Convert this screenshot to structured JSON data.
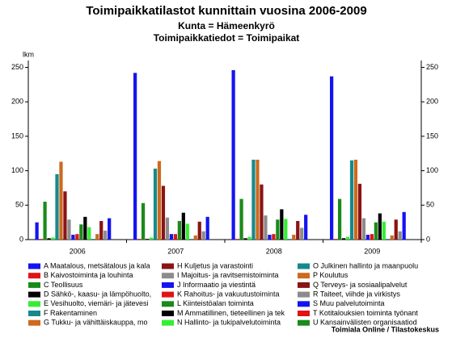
{
  "chart_data": {
    "type": "bar",
    "title": "Toimipaikkatilastot kunnittain vuosina 2006-2009",
    "subtitle": [
      "Kunta = Hämeenkyrö",
      "Toimipaikkatiedot = Toimipaikat"
    ],
    "y_label": "lkm",
    "source": "Toimiala Online / Tilastokeskus",
    "categories": [
      "2006",
      "2007",
      "2008",
      "2009"
    ],
    "ylim": [
      0,
      260
    ],
    "yticks": [
      0,
      50,
      100,
      150,
      200,
      250
    ],
    "series": [
      {
        "name": "A Maatalous, metsätalous ja kala",
        "color": "#1414f0",
        "values": [
          25,
          242,
          246,
          237
        ]
      },
      {
        "name": "B Kaivostoiminta ja louhinta",
        "color": "#e01414",
        "values": [
          1,
          1,
          1,
          1
        ]
      },
      {
        "name": "C Teollisuus",
        "color": "#1a8a1a",
        "values": [
          55,
          53,
          59,
          59
        ]
      },
      {
        "name": "D Sähkö-, kaasu- ja lämpöhuolto,",
        "color": "#000000",
        "values": [
          2,
          1,
          2,
          2
        ]
      },
      {
        "name": "E Vesihuolto, viemäri- ja jätevesi",
        "color": "#33ee33",
        "values": [
          3,
          3,
          4,
          4
        ]
      },
      {
        "name": "F Rakentaminen",
        "color": "#168a8a",
        "values": [
          95,
          103,
          116,
          115
        ]
      },
      {
        "name": "G Tukku- ja vähittäiskauppa, mo",
        "color": "#cc6a1e",
        "values": [
          113,
          114,
          116,
          116
        ]
      },
      {
        "name": "H Kuljetus ja varastointi",
        "color": "#8a1414",
        "values": [
          70,
          78,
          80,
          81
        ]
      },
      {
        "name": "I Majoitus- ja ravitsemistoiminta",
        "color": "#8c8c8c",
        "values": [
          29,
          32,
          35,
          31
        ]
      },
      {
        "name": "J Informaatio ja viestintä",
        "color": "#1414f0",
        "values": [
          7,
          8,
          7,
          7
        ]
      },
      {
        "name": "K Rahoitus- ja vakuutustoiminta",
        "color": "#e01414",
        "values": [
          8,
          8,
          8,
          8
        ]
      },
      {
        "name": "L Kiinteistöalan toiminta",
        "color": "#1a8a1a",
        "values": [
          22,
          27,
          29,
          25
        ]
      },
      {
        "name": "M Ammatillinen, tieteellinen ja tek",
        "color": "#000000",
        "values": [
          33,
          39,
          44,
          38
        ]
      },
      {
        "name": "N Hallinto- ja tukipalvelutoiminta",
        "color": "#33ee33",
        "values": [
          18,
          23,
          30,
          26
        ]
      },
      {
        "name": "O Julkinen hallinto ja maanpuolu",
        "color": "#168a8a",
        "values": [
          1,
          1,
          1,
          1
        ]
      },
      {
        "name": "P Koulutus",
        "color": "#cc6a1e",
        "values": [
          8,
          6,
          7,
          6
        ]
      },
      {
        "name": "Q Terveys- ja sosiaalipalvelut",
        "color": "#8a1414",
        "values": [
          27,
          26,
          27,
          29
        ]
      },
      {
        "name": "R Taiteet, viihde ja virkistys",
        "color": "#8c8c8c",
        "values": [
          13,
          12,
          17,
          12
        ]
      },
      {
        "name": "S Muu palvelutoiminta",
        "color": "#1414f0",
        "values": [
          31,
          33,
          36,
          40
        ]
      },
      {
        "name": "T Kotitalouksien toiminta työnant",
        "color": "#e01414",
        "values": [
          0,
          0,
          0,
          0
        ]
      },
      {
        "name": "U Kansainvälisten organisaatiod",
        "color": "#1a8a1a",
        "values": [
          0,
          0,
          0,
          0
        ]
      }
    ]
  }
}
